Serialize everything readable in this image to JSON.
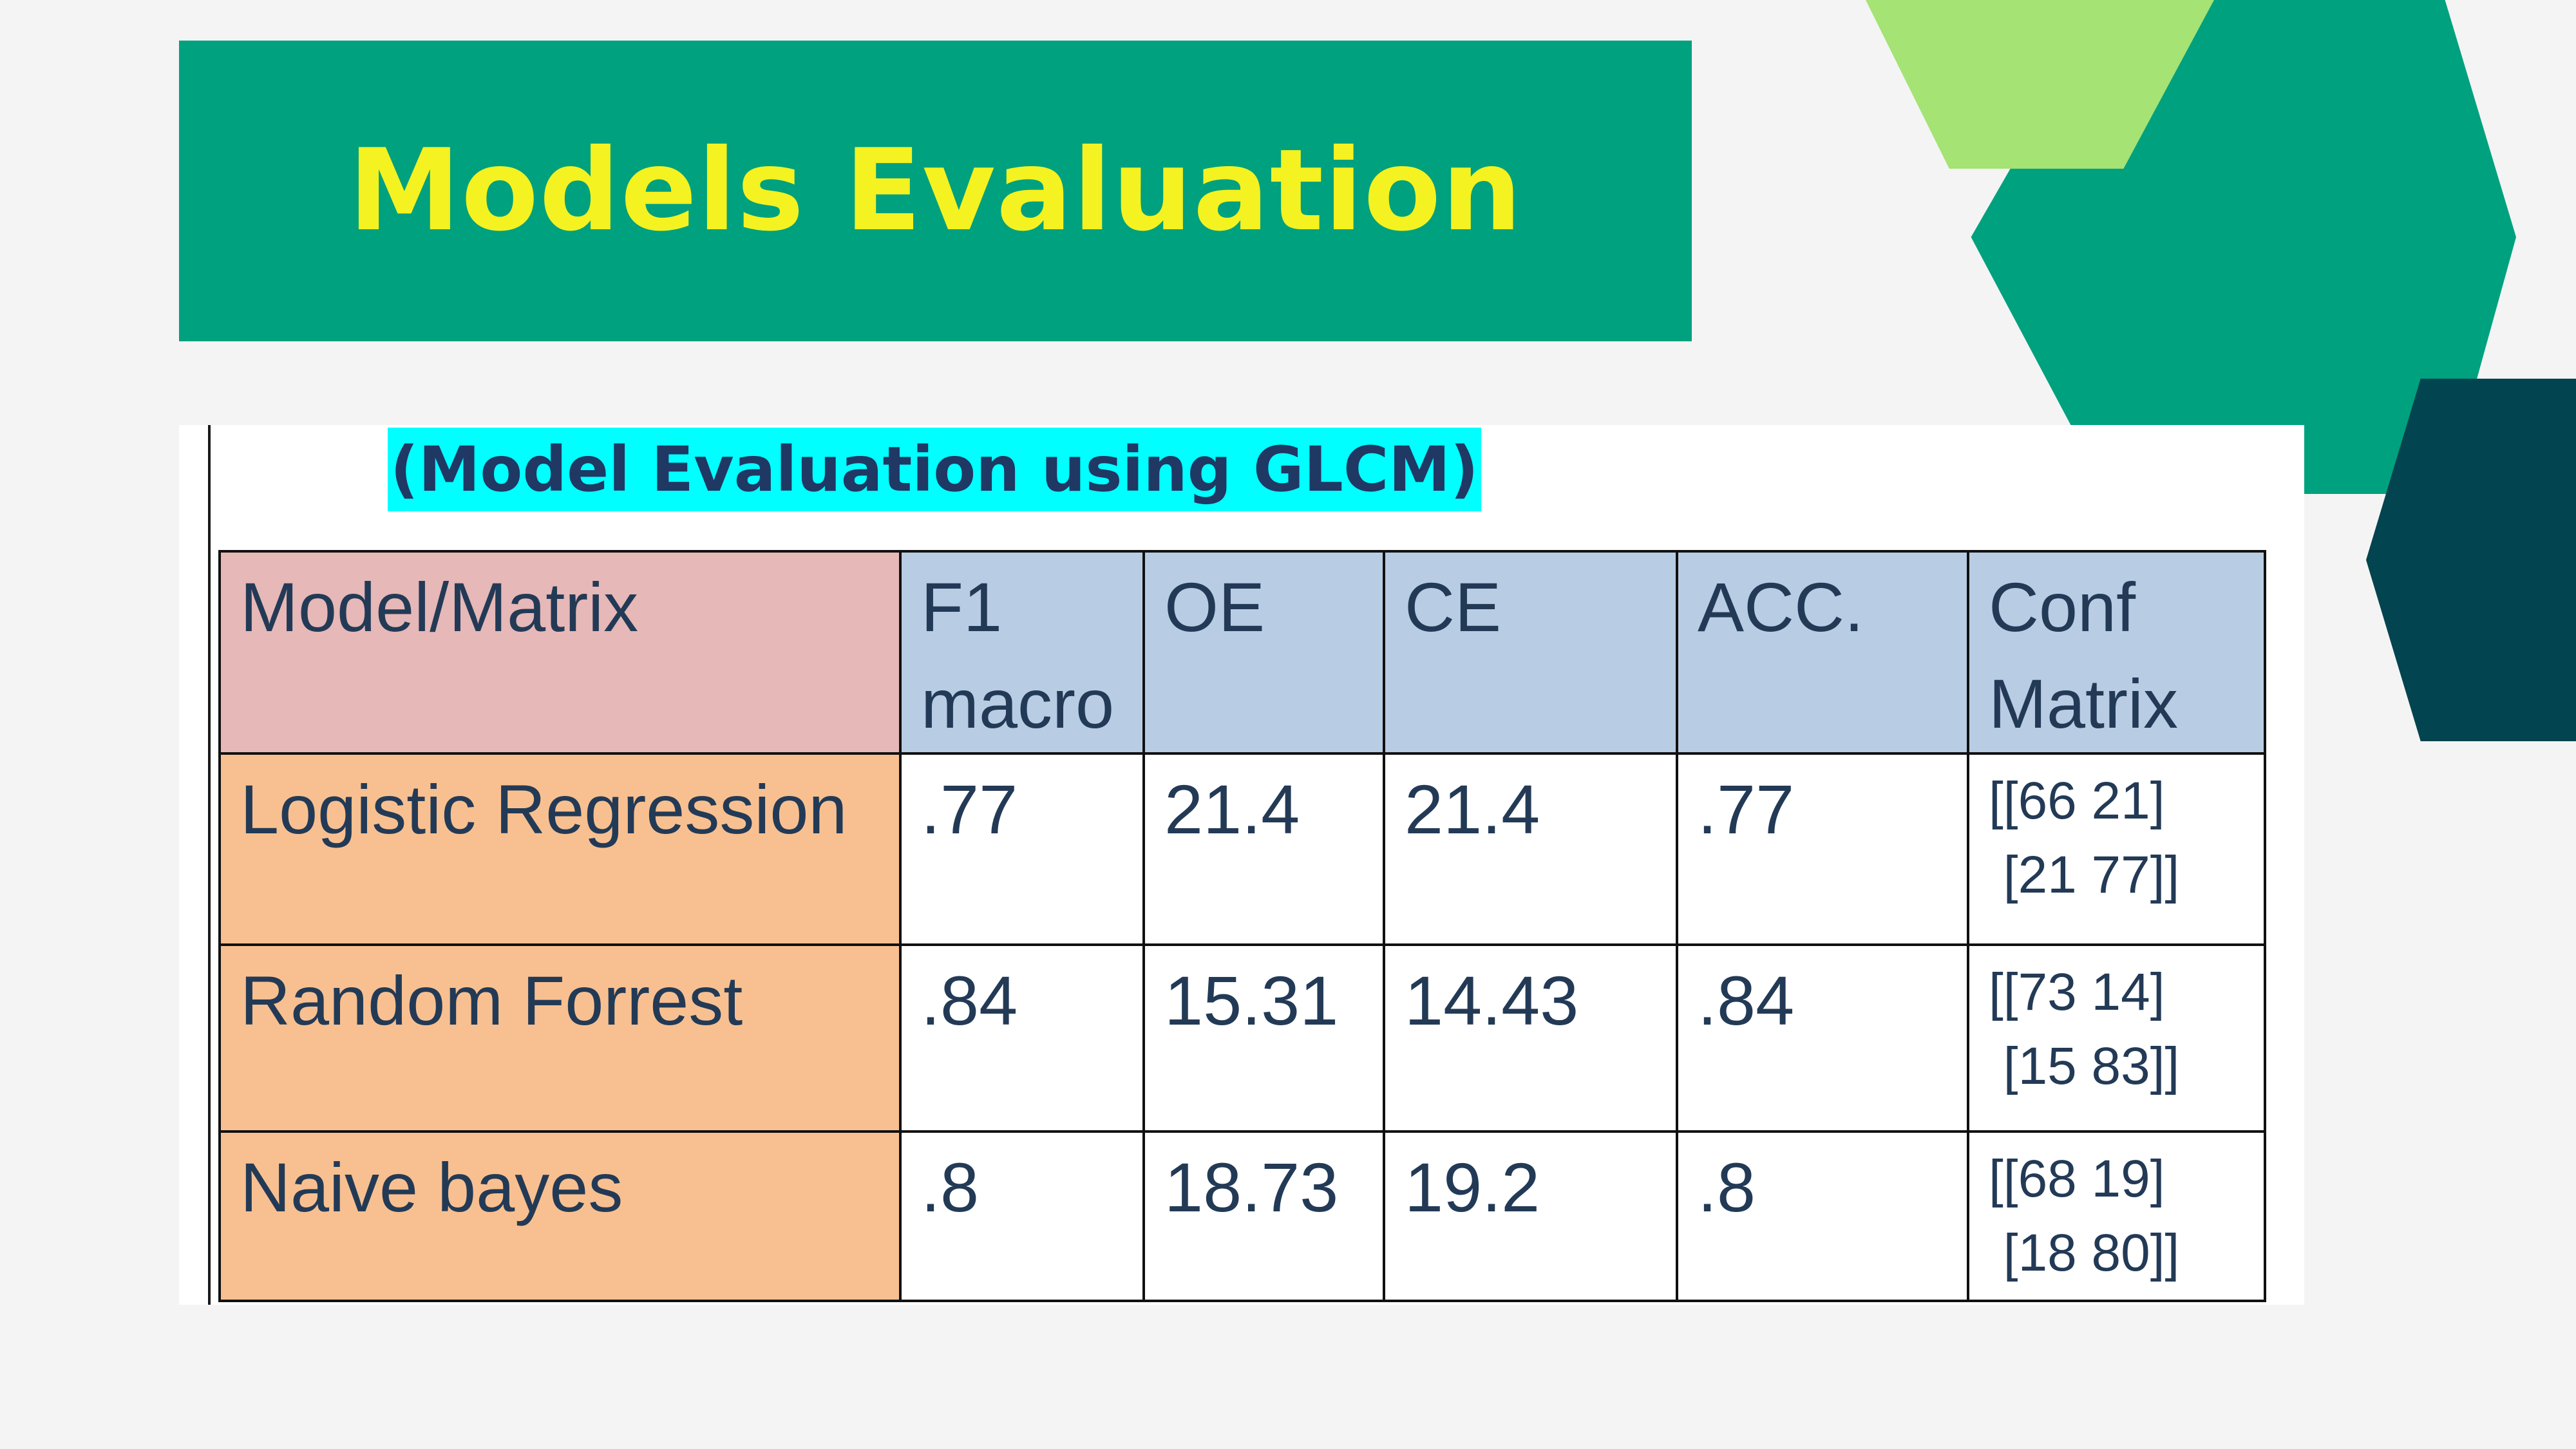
{
  "slide": {
    "title": "Models Evaluation",
    "colors": {
      "banner": "#00a17e",
      "title_text": "#f4f221",
      "hex_green": "#00a17e",
      "hex_light_green": "#a4e374",
      "hex_dark_teal": "#02444f",
      "background": "#f4f4f4"
    }
  },
  "document": {
    "subtitle": "(Model Evaluation using GLCM)",
    "subtitle_highlight": "#00ffff",
    "table": {
      "headers": {
        "model": "Model/Matrix",
        "f1": "F1 macro",
        "oe": "OE",
        "ce": "CE",
        "acc": "ACC.",
        "conf": "Conf Matrix"
      },
      "rows": [
        {
          "model": "Logistic Regression",
          "f1": ".77",
          "oe": "21.4",
          "ce": "21.4",
          "acc": ".77",
          "conf": "[[66 21]\n [21 77]]"
        },
        {
          "model": "Random Forrest",
          "f1": ".84",
          "oe": "15.31",
          "ce": "14.43",
          "acc": ".84",
          "conf": "[[73 14]\n [15 83]]"
        },
        {
          "model": "Naive bayes",
          "f1": ".8",
          "oe": "18.73",
          "ce": "19.2",
          "acc": ".8",
          "conf": "[[68 19]\n [18 80]]"
        }
      ]
    }
  }
}
